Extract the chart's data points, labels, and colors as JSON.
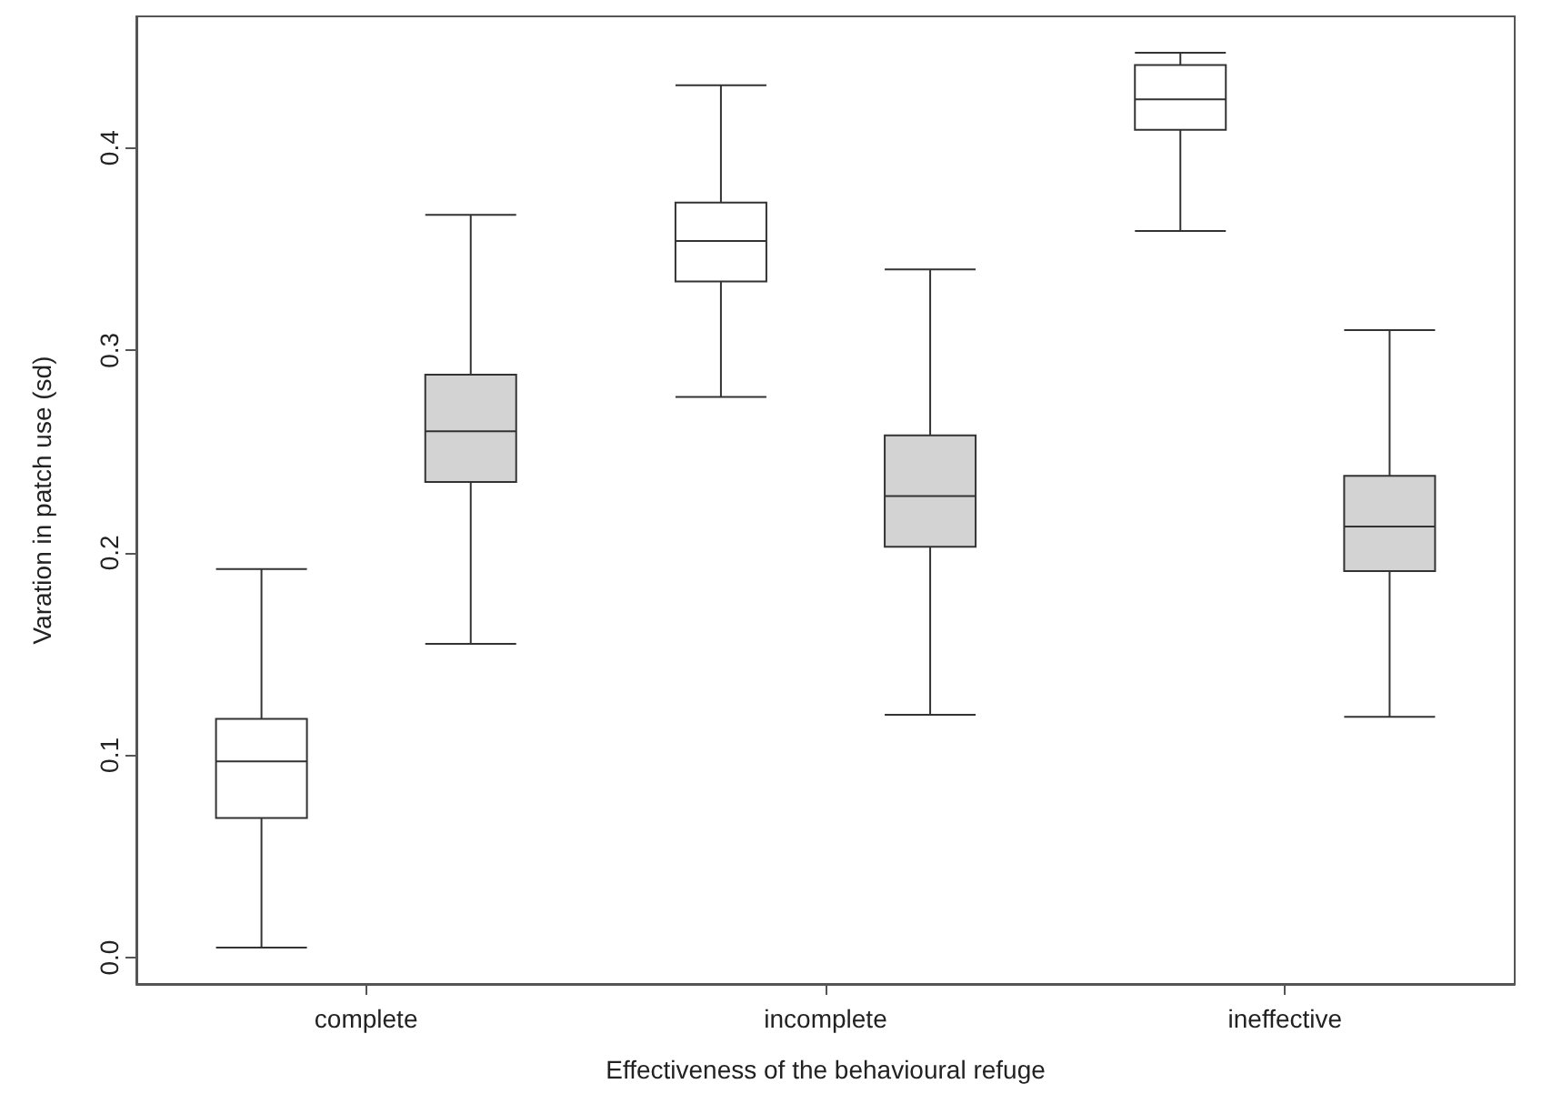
{
  "chart_data": {
    "type": "box",
    "xlabel": "Effectiveness of the behavioural refuge",
    "ylabel": "Varation in patch use (sd)",
    "categories": [
      "complete",
      "incomplete",
      "ineffective"
    ],
    "ylim": [
      -0.013,
      0.465
    ],
    "yticks": [
      {
        "value": 0,
        "label": "0.0"
      },
      0.1,
      0.2,
      0.3,
      0.4
    ],
    "grid": false,
    "series": [
      {
        "color": "#ffffff",
        "boxes": [
          {
            "low": 0.005,
            "q1": 0.069,
            "median": 0.097,
            "q3": 0.118,
            "high": 0.192
          },
          {
            "low": 0.277,
            "q1": 0.334,
            "median": 0.354,
            "q3": 0.373,
            "high": 0.431
          },
          {
            "low": 0.359,
            "q1": 0.409,
            "median": 0.424,
            "q3": 0.441,
            "high": 0.447
          }
        ]
      },
      {
        "color": "#d3d3d3",
        "boxes": [
          {
            "low": 0.155,
            "q1": 0.235,
            "median": 0.26,
            "q3": 0.288,
            "high": 0.367
          },
          {
            "low": 0.12,
            "q1": 0.203,
            "median": 0.228,
            "q3": 0.258,
            "high": 0.34
          },
          {
            "low": 0.119,
            "q1": 0.191,
            "median": 0.213,
            "q3": 0.238,
            "high": 0.31
          }
        ]
      }
    ]
  }
}
